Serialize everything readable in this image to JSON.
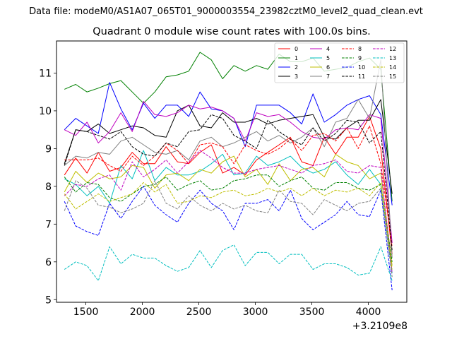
{
  "figure": {
    "subtitle": "Data file: modeM0/AS1A07_065T01_9000003554_23982cztM0_level2_quad_clean.evt",
    "title": "Quadrant 0 module wise count rates with 100.0s bins.",
    "offset_label": "+3.2109e8"
  },
  "chart_data": {
    "type": "line",
    "title": "Quadrant 0 module wise count rates with 100.0s bins.",
    "xlabel": "",
    "ylabel": "",
    "x_offset": 321090000,
    "xlim": [
      1240,
      4340
    ],
    "ylim": [
      4.93,
      11.85
    ],
    "xticks": [
      1500,
      2000,
      2500,
      3000,
      3500,
      4000
    ],
    "xtick_labels": [
      "1500",
      "2000",
      "2500",
      "3000",
      "3500",
      "4000"
    ],
    "yticks": [
      5,
      6,
      7,
      8,
      9,
      10,
      11
    ],
    "ytick_labels": [
      "5",
      "6",
      "7",
      "8",
      "9",
      "10",
      "11"
    ],
    "legend_position": "top-right",
    "x": [
      1310,
      1410,
      1510,
      1610,
      1710,
      1810,
      1910,
      2010,
      2110,
      2210,
      2310,
      2410,
      2510,
      2610,
      2710,
      2810,
      2910,
      3010,
      3110,
      3210,
      3310,
      3410,
      3510,
      3610,
      3710,
      3810,
      3910,
      4010,
      4110,
      4210
    ],
    "series": [
      {
        "name": "0",
        "color": "#ff0000",
        "dash": "solid",
        "values": [
          8.3,
          8.75,
          8.35,
          8.9,
          8.4,
          8.5,
          8.9,
          8.6,
          8.6,
          9.05,
          8.65,
          8.6,
          8.9,
          9.1,
          8.35,
          8.5,
          8.3,
          8.7,
          8.9,
          9.1,
          9.3,
          8.65,
          8.55,
          9.3,
          8.85,
          9.3,
          9.3,
          9.85,
          9.0,
          6.2
        ]
      },
      {
        "name": "1",
        "color": "#008000",
        "dash": "solid",
        "values": [
          10.57,
          10.7,
          10.5,
          10.6,
          10.72,
          10.8,
          10.5,
          10.2,
          10.5,
          10.9,
          10.95,
          11.05,
          11.55,
          11.35,
          10.85,
          11.2,
          11.05,
          11.2,
          11.1,
          11.5,
          11.3,
          11.3,
          11.4,
          11.05,
          11.1,
          11.15,
          11.3,
          11.4,
          11.1,
          7.6
        ]
      },
      {
        "name": "2",
        "color": "#0000ff",
        "dash": "solid",
        "values": [
          9.5,
          9.8,
          9.6,
          9.4,
          10.75,
          10.05,
          9.5,
          10.2,
          9.8,
          10.15,
          10.15,
          9.85,
          10.5,
          10.05,
          10.0,
          9.8,
          9.05,
          10.15,
          10.15,
          10.15,
          9.95,
          9.65,
          10.45,
          9.7,
          9.9,
          10.15,
          10.3,
          10.4,
          9.9,
          7.5
        ]
      },
      {
        "name": "3",
        "color": "#000000",
        "dash": "solid",
        "values": [
          8.6,
          9.5,
          9.45,
          9.65,
          9.4,
          9.5,
          9.6,
          9.55,
          9.35,
          9.3,
          10.0,
          10.15,
          9.6,
          9.55,
          9.95,
          9.7,
          9.7,
          9.8,
          9.65,
          9.75,
          9.8,
          9.85,
          9.9,
          9.3,
          9.25,
          9.55,
          9.75,
          9.75,
          10.3,
          7.8
        ]
      },
      {
        "name": "4",
        "color": "#bf00bf",
        "dash": "solid",
        "values": [
          9.5,
          9.35,
          9.7,
          9.15,
          9.45,
          9.95,
          9.45,
          10.25,
          9.9,
          9.85,
          9.95,
          10.15,
          10.05,
          10.1,
          10.0,
          9.8,
          9.2,
          9.95,
          9.85,
          9.9,
          9.7,
          9.45,
          9.3,
          9.25,
          9.5,
          9.55,
          9.5,
          9.9,
          9.8,
          6.5
        ]
      },
      {
        "name": "5",
        "color": "#00bfbf",
        "dash": "solid",
        "values": [
          8.2,
          8.05,
          7.75,
          8.0,
          7.55,
          8.55,
          8.2,
          8.95,
          8.15,
          8.5,
          8.3,
          8.3,
          8.4,
          8.6,
          8.85,
          8.3,
          8.35,
          8.8,
          8.55,
          8.65,
          8.8,
          8.5,
          8.35,
          8.45,
          8.65,
          8.3,
          8.05,
          8.45,
          8.05,
          5.7
        ]
      },
      {
        "name": "6",
        "color": "#bfbf00",
        "dash": "solid",
        "values": [
          7.85,
          8.4,
          8.1,
          8.35,
          8.2,
          8.25,
          8.55,
          8.5,
          7.95,
          8.3,
          8.35,
          8.15,
          8.45,
          8.35,
          8.65,
          8.8,
          8.25,
          8.45,
          8.05,
          8.6,
          8.15,
          8.45,
          8.5,
          8.25,
          8.85,
          8.65,
          8.55,
          8.2,
          8.35,
          5.9
        ]
      },
      {
        "name": "7",
        "color": "#808080",
        "dash": "solid",
        "values": [
          8.55,
          8.8,
          8.75,
          8.9,
          8.85,
          9.2,
          9.3,
          9.1,
          8.9,
          8.85,
          8.95,
          8.7,
          9.2,
          9.3,
          9.05,
          9.15,
          9.3,
          9.45,
          9.2,
          9.35,
          9.15,
          9.3,
          9.55,
          9.05,
          9.7,
          9.8,
          10.3,
          9.8,
          11.35,
          6.1
        ]
      },
      {
        "name": "8",
        "color": "#ff0000",
        "dash": "dashed",
        "values": [
          8.7,
          8.7,
          8.7,
          8.75,
          8.55,
          8.4,
          8.8,
          8.55,
          8.8,
          9.15,
          8.95,
          8.6,
          9.1,
          9.15,
          9.05,
          8.6,
          9.1,
          8.95,
          8.85,
          9.0,
          9.25,
          8.95,
          9.35,
          9.4,
          9.2,
          9.55,
          9.0,
          9.6,
          8.6,
          6.4
        ]
      },
      {
        "name": "9",
        "color": "#008000",
        "dash": "dashed",
        "values": [
          8.25,
          7.85,
          8.1,
          8.05,
          7.7,
          7.6,
          7.8,
          8.0,
          8.05,
          8.25,
          7.9,
          8.05,
          8.15,
          7.9,
          7.95,
          8.15,
          8.2,
          8.3,
          8.3,
          8.0,
          8.15,
          8.25,
          7.95,
          7.9,
          8.1,
          8.1,
          7.95,
          7.9,
          8.05,
          6.0
        ]
      },
      {
        "name": "10",
        "color": "#0000ff",
        "dash": "dashed",
        "values": [
          7.6,
          6.95,
          6.8,
          6.7,
          7.55,
          7.15,
          7.6,
          8.0,
          7.5,
          7.25,
          7.05,
          7.55,
          7.9,
          7.55,
          7.35,
          6.85,
          7.55,
          7.55,
          7.65,
          7.35,
          7.9,
          7.15,
          6.85,
          7.05,
          7.25,
          7.6,
          7.25,
          7.2,
          7.9,
          5.25
        ]
      },
      {
        "name": "11",
        "color": "#000000",
        "dash": "dashed",
        "values": [
          8.55,
          9.5,
          9.45,
          9.35,
          9.25,
          9.45,
          9.05,
          8.85,
          8.8,
          9.15,
          9.05,
          9.45,
          9.5,
          9.9,
          9.8,
          9.35,
          9.2,
          9.0,
          9.75,
          9.45,
          9.25,
          9.1,
          9.55,
          9.2,
          9.4,
          9.75,
          9.7,
          9.15,
          9.45,
          6.3
        ]
      },
      {
        "name": "12",
        "color": "#bf00bf",
        "dash": "dashed",
        "values": [
          7.75,
          8.05,
          8.0,
          8.2,
          8.3,
          7.9,
          8.65,
          8.25,
          8.45,
          8.7,
          8.35,
          8.65,
          8.95,
          8.75,
          8.5,
          8.35,
          8.35,
          8.45,
          8.5,
          8.55,
          8.45,
          8.35,
          8.55,
          8.6,
          8.7,
          8.4,
          8.35,
          8.55,
          8.5,
          5.7
        ]
      },
      {
        "name": "13",
        "color": "#00bfbf",
        "dash": "dashed",
        "values": [
          5.8,
          6.0,
          5.9,
          5.5,
          6.4,
          5.95,
          6.2,
          6.1,
          6.1,
          5.9,
          5.75,
          5.85,
          6.3,
          5.85,
          6.3,
          6.45,
          5.9,
          6.25,
          6.25,
          5.95,
          6.2,
          6.2,
          5.8,
          5.95,
          5.95,
          5.85,
          5.65,
          5.7,
          6.4,
          5.5
        ]
      },
      {
        "name": "14",
        "color": "#bfbf00",
        "dash": "dashed",
        "values": [
          7.8,
          7.4,
          7.6,
          7.8,
          7.6,
          7.7,
          7.8,
          8.1,
          7.85,
          8.05,
          7.55,
          7.6,
          7.75,
          7.7,
          7.85,
          7.9,
          7.75,
          7.8,
          7.95,
          7.85,
          7.95,
          7.75,
          7.95,
          7.75,
          7.9,
          7.85,
          7.95,
          7.75,
          8.1,
          5.8
        ]
      },
      {
        "name": "15",
        "color": "#808080",
        "dash": "dashed",
        "values": [
          7.35,
          8.15,
          7.95,
          7.5,
          7.45,
          7.3,
          7.4,
          7.55,
          8.15,
          7.55,
          7.4,
          7.75,
          7.5,
          7.35,
          7.55,
          7.4,
          7.5,
          7.35,
          7.3,
          7.9,
          7.6,
          7.55,
          7.25,
          7.65,
          7.5,
          7.35,
          7.55,
          7.6,
          7.95,
          5.6
        ]
      }
    ]
  }
}
